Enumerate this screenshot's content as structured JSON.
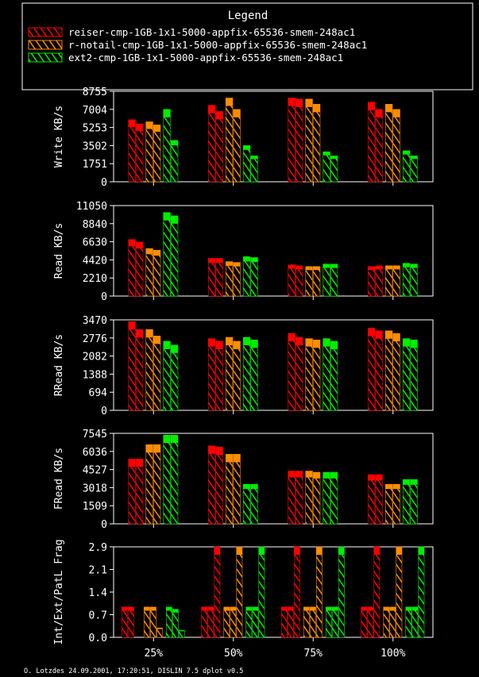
{
  "legend": {
    "title": "Legend",
    "entries": [
      {
        "label": "reiser-cmp-1GB-1x1-5000-appfix-65536-smem-248ac1",
        "color": "#ff0000"
      },
      {
        "label": "r-notail-cmp-1GB-1x1-5000-appfix-65536-smem-248ac1",
        "color": "#ff8c00"
      },
      {
        "label": "ext2-cmp-1GB-1x1-5000-appfix-65536-smem-248ac1",
        "color": "#00ee00"
      }
    ]
  },
  "footer": "O. Lotzdes 24.09.2001, 17:20:51, DISLIN 7.5 dplot v0.5",
  "chart_data": [
    {
      "type": "bar",
      "ylabel": "Write KB/s",
      "yticks": [
        "0",
        "1751",
        "3502",
        "5253",
        "7004",
        "8755"
      ],
      "ylim": [
        0,
        8755
      ],
      "categories": [
        "25%",
        "50%",
        "75%",
        "100%"
      ],
      "bars_per_series": 2,
      "series": [
        {
          "name": "reiser-cmp-1GB-1x1-5000-appfix-65536-smem-248ac1",
          "values": [
            [
              6000,
              5600
            ],
            [
              7400,
              6800
            ],
            [
              8100,
              8000
            ],
            [
              7700,
              7000
            ]
          ]
        },
        {
          "name": "r-notail-cmp-1GB-1x1-5000-appfix-65536-smem-248ac1",
          "values": [
            [
              5800,
              5500
            ],
            [
              8100,
              7000
            ],
            [
              8000,
              7500
            ],
            [
              7500,
              7000
            ]
          ]
        },
        {
          "name": "ext2-cmp-1GB-1x1-5000-appfix-65536-smem-248ac1",
          "values": [
            [
              7000,
              4000
            ],
            [
              3500,
              2500
            ],
            [
              2900,
              2500
            ],
            [
              3000,
              2500
            ]
          ]
        }
      ]
    },
    {
      "type": "bar",
      "ylabel": "Read KB/s",
      "yticks": [
        "0",
        "2210",
        "4420",
        "6630",
        "8840",
        "11050"
      ],
      "ylim": [
        0,
        11050
      ],
      "categories": [
        "25%",
        "50%",
        "75%",
        "100%"
      ],
      "bars_per_series": 2,
      "series": [
        {
          "name": "reiser-cmp-1GB-1x1-5000-appfix-65536-smem-248ac1",
          "values": [
            [
              6900,
              6600
            ],
            [
              4600,
              4600
            ],
            [
              3800,
              3700
            ],
            [
              3600,
              3700
            ]
          ]
        },
        {
          "name": "r-notail-cmp-1GB-1x1-5000-appfix-65536-smem-248ac1",
          "values": [
            [
              5800,
              5600
            ],
            [
              4200,
              4100
            ],
            [
              3600,
              3600
            ],
            [
              3700,
              3700
            ]
          ]
        },
        {
          "name": "ext2-cmp-1GB-1x1-5000-appfix-65536-smem-248ac1",
          "values": [
            [
              10200,
              9800
            ],
            [
              4800,
              4700
            ],
            [
              3900,
              3900
            ],
            [
              4000,
              3900
            ]
          ]
        }
      ]
    },
    {
      "type": "bar",
      "ylabel": "RRead KB/s",
      "yticks": [
        "0",
        "694",
        "1388",
        "2082",
        "2776",
        "3470"
      ],
      "ylim": [
        0,
        3470
      ],
      "categories": [
        "25%",
        "50%",
        "75%",
        "100%"
      ],
      "bars_per_series": 2,
      "series": [
        {
          "name": "reiser-cmp-1GB-1x1-5000-appfix-65536-smem-248ac1",
          "values": [
            [
              3400,
              3100
            ],
            [
              2750,
              2650
            ],
            [
              2950,
              2800
            ],
            [
              3150,
              3050
            ]
          ]
        },
        {
          "name": "r-notail-cmp-1GB-1x1-5000-appfix-65536-smem-248ac1",
          "values": [
            [
              3100,
              2850
            ],
            [
              2800,
              2650
            ],
            [
              2750,
              2700
            ],
            [
              3050,
              2950
            ]
          ]
        },
        {
          "name": "ext2-cmp-1GB-1x1-5000-appfix-65536-smem-248ac1",
          "values": [
            [
              2650,
              2500
            ],
            [
              2800,
              2700
            ],
            [
              2750,
              2650
            ],
            [
              2750,
              2700
            ]
          ]
        }
      ]
    },
    {
      "type": "bar",
      "ylabel": "FRead KB/s",
      "yticks": [
        "0",
        "1509",
        "3018",
        "4527",
        "6036",
        "7545"
      ],
      "ylim": [
        0,
        7545
      ],
      "categories": [
        "25%",
        "50%",
        "75%",
        "100%"
      ],
      "bars_per_series": 2,
      "series": [
        {
          "name": "reiser-cmp-1GB-1x1-5000-appfix-65536-smem-248ac1",
          "values": [
            [
              5400,
              5400
            ],
            [
              6500,
              6400
            ],
            [
              4400,
              4400
            ],
            [
              4100,
              4100
            ]
          ]
        },
        {
          "name": "r-notail-cmp-1GB-1x1-5000-appfix-65536-smem-248ac1",
          "values": [
            [
              6600,
              6600
            ],
            [
              5800,
              5800
            ],
            [
              4400,
              4300
            ],
            [
              3300,
              3300
            ]
          ]
        },
        {
          "name": "ext2-cmp-1GB-1x1-5000-appfix-65536-smem-248ac1",
          "values": [
            [
              7400,
              7400
            ],
            [
              3300,
              3300
            ],
            [
              4300,
              4300
            ],
            [
              3700,
              3700
            ]
          ]
        }
      ]
    },
    {
      "type": "bar",
      "ylabel": "Int/Ext/PatL Frag",
      "yticks": [
        "0.0",
        "0.7",
        "1.4",
        "2.1",
        "2.9"
      ],
      "ylim": [
        0,
        2.9
      ],
      "categories": [
        "25%",
        "50%",
        "75%",
        "100%"
      ],
      "bars_per_series": 3,
      "series": [
        {
          "name": "reiser-cmp-1GB-1x1-5000-appfix-65536-smem-248ac1",
          "values": [
            [
              0.97,
              0.97,
              0.0
            ],
            [
              0.97,
              0.97,
              2.9
            ],
            [
              0.97,
              0.97,
              2.9
            ],
            [
              0.97,
              0.97,
              2.9
            ]
          ]
        },
        {
          "name": "r-notail-cmp-1GB-1x1-5000-appfix-65536-smem-248ac1",
          "values": [
            [
              0.97,
              0.97,
              0.3
            ],
            [
              0.97,
              0.97,
              2.9
            ],
            [
              0.97,
              0.97,
              2.9
            ],
            [
              0.97,
              0.97,
              2.9
            ]
          ]
        },
        {
          "name": "ext2-cmp-1GB-1x1-5000-appfix-65536-smem-248ac1",
          "values": [
            [
              0.97,
              0.9,
              0.22
            ],
            [
              0.97,
              0.97,
              2.9
            ],
            [
              0.97,
              0.97,
              2.9
            ],
            [
              0.97,
              0.97,
              2.9
            ]
          ]
        }
      ]
    }
  ]
}
